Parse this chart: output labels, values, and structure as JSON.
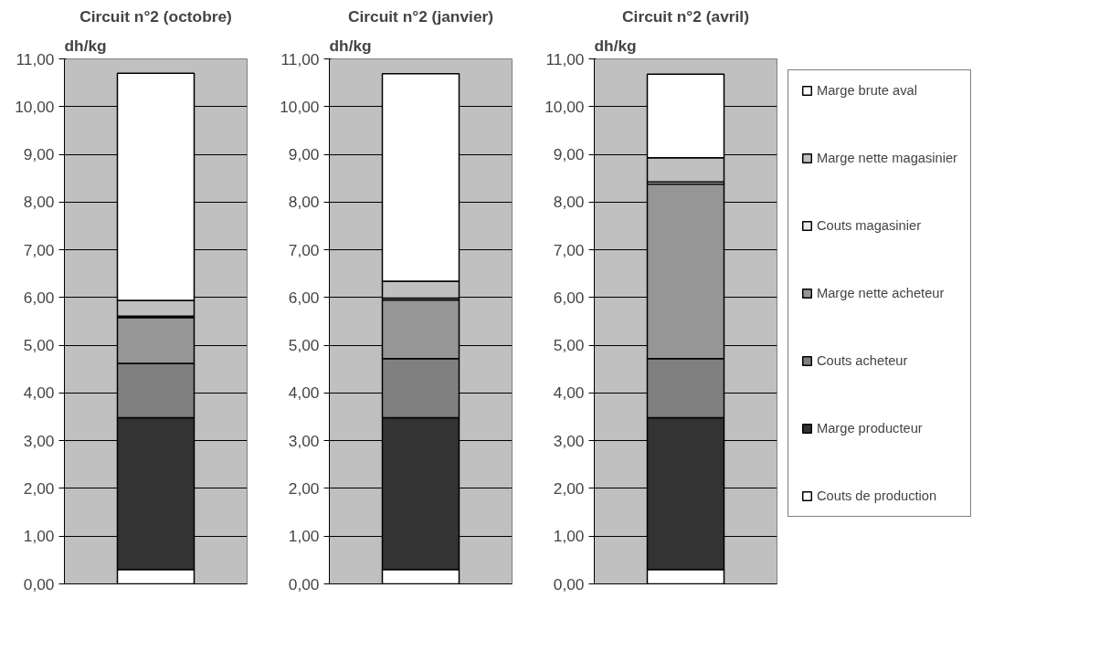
{
  "chart_data": [
    {
      "type": "bar",
      "title": "Circuit n°2 (octobre)",
      "ylabel": "dh/kg",
      "categories": [
        null
      ],
      "stacked": true,
      "grid": "y",
      "legend": false,
      "ylim": [
        0,
        11
      ],
      "yticks": [
        {
          "value": 0,
          "label": "0,00"
        },
        {
          "value": 1,
          "label": "1,00"
        },
        {
          "value": 2,
          "label": "2,00"
        },
        {
          "value": 3,
          "label": "3,00"
        },
        {
          "value": 4,
          "label": "4,00"
        },
        {
          "value": 5,
          "label": "5,00"
        },
        {
          "value": 6,
          "label": "6,00"
        },
        {
          "value": 7,
          "label": "7,00"
        },
        {
          "value": 8,
          "label": "8,00"
        },
        {
          "value": 9,
          "label": "9,00"
        },
        {
          "value": 10,
          "label": "10,00"
        },
        {
          "value": 11,
          "label": "11,00"
        }
      ],
      "series": [
        {
          "color": "#ffffff",
          "values": [
            0.3
          ]
        },
        {
          "color": "#333333",
          "values": [
            3.18
          ]
        },
        {
          "color": "#808080",
          "values": [
            1.14
          ]
        },
        {
          "color": "#969696",
          "values": [
            0.96
          ]
        },
        {
          "color": "#eaeaea",
          "values": [
            0.03
          ]
        },
        {
          "color": "#c0c0c0",
          "values": [
            0.33
          ]
        },
        {
          "color": "#ffffff",
          "values": [
            4.76
          ]
        }
      ]
    },
    {
      "type": "bar",
      "title": "Circuit n°2 (janvier)",
      "ylabel": "dh/kg",
      "categories": [
        null
      ],
      "stacked": true,
      "grid": "y",
      "legend": false,
      "ylim": [
        0,
        11
      ],
      "yticks": [
        {
          "value": 0,
          "label": "0,00"
        },
        {
          "value": 1,
          "label": "1,00"
        },
        {
          "value": 2,
          "label": "2,00"
        },
        {
          "value": 3,
          "label": "3,00"
        },
        {
          "value": 4,
          "label": "4,00"
        },
        {
          "value": 5,
          "label": "5,00"
        },
        {
          "value": 6,
          "label": "6,00"
        },
        {
          "value": 7,
          "label": "7,00"
        },
        {
          "value": 8,
          "label": "8,00"
        },
        {
          "value": 9,
          "label": "9,00"
        },
        {
          "value": 10,
          "label": "10,00"
        },
        {
          "value": 11,
          "label": "11,00"
        }
      ],
      "series": [
        {
          "color": "#ffffff",
          "values": [
            0.3
          ]
        },
        {
          "color": "#333333",
          "values": [
            3.18
          ]
        },
        {
          "color": "#808080",
          "values": [
            1.24
          ]
        },
        {
          "color": "#969696",
          "values": [
            1.23
          ]
        },
        {
          "color": "#eaeaea",
          "values": [
            0.04
          ]
        },
        {
          "color": "#c0c0c0",
          "values": [
            0.35
          ]
        },
        {
          "color": "#ffffff",
          "values": [
            4.35
          ]
        }
      ]
    },
    {
      "type": "bar",
      "title": "Circuit n°2 (avril)",
      "ylabel": "dh/kg",
      "categories": [
        null
      ],
      "stacked": true,
      "grid": "y",
      "legend": "right",
      "ylim": [
        0,
        11
      ],
      "yticks": [
        {
          "value": 0,
          "label": "0,00"
        },
        {
          "value": 1,
          "label": "1,00"
        },
        {
          "value": 2,
          "label": "2,00"
        },
        {
          "value": 3,
          "label": "3,00"
        },
        {
          "value": 4,
          "label": "4,00"
        },
        {
          "value": 5,
          "label": "5,00"
        },
        {
          "value": 6,
          "label": "6,00"
        },
        {
          "value": 7,
          "label": "7,00"
        },
        {
          "value": 8,
          "label": "8,00"
        },
        {
          "value": 9,
          "label": "9,00"
        },
        {
          "value": 10,
          "label": "10,00"
        },
        {
          "value": 11,
          "label": "11,00"
        }
      ],
      "series": [
        {
          "name": "Couts de production",
          "color": "#ffffff",
          "values": [
            0.3
          ]
        },
        {
          "name": "Marge producteur",
          "color": "#333333",
          "values": [
            3.18
          ]
        },
        {
          "name": "Couts acheteur",
          "color": "#808080",
          "values": [
            1.24
          ]
        },
        {
          "name": "Marge nette acheteur",
          "color": "#969696",
          "values": [
            3.66
          ]
        },
        {
          "name": "Couts magasinier",
          "color": "#eaeaea",
          "values": [
            0.04
          ]
        },
        {
          "name": "Marge nette magasinier",
          "color": "#c0c0c0",
          "values": [
            0.51
          ]
        },
        {
          "name": "Marge brute aval",
          "color": "#ffffff",
          "values": [
            1.75
          ]
        }
      ]
    }
  ]
}
